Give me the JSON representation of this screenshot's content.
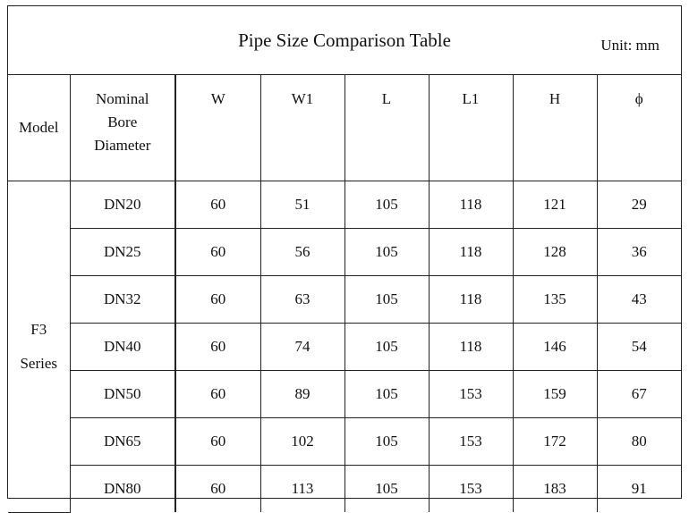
{
  "title": "Pipe Size Comparison Table",
  "unit": "Unit: mm",
  "headers": {
    "model": "Model",
    "bore_line1": "Nominal",
    "bore_line2": "Bore",
    "bore_line3": "Diameter",
    "w": "W",
    "w1": "W1",
    "l": "L",
    "l1": "L1",
    "h": "H",
    "phi": "ϕ"
  },
  "series": {
    "line1": "F3",
    "line2": "Series"
  },
  "rows": [
    {
      "dn": "DN20",
      "w": "60",
      "w1": "51",
      "l": "105",
      "l1": "118",
      "h": "121",
      "phi": "29"
    },
    {
      "dn": "DN25",
      "w": "60",
      "w1": "56",
      "l": "105",
      "l1": "118",
      "h": "128",
      "phi": "36"
    },
    {
      "dn": "DN32",
      "w": "60",
      "w1": "63",
      "l": "105",
      "l1": "118",
      "h": "135",
      "phi": "43"
    },
    {
      "dn": "DN40",
      "w": "60",
      "w1": "74",
      "l": "105",
      "l1": "118",
      "h": "146",
      "phi": "54"
    },
    {
      "dn": "DN50",
      "w": "60",
      "w1": "89",
      "l": "105",
      "l1": "153",
      "h": "159",
      "phi": "67"
    },
    {
      "dn": "DN65",
      "w": "60",
      "w1": "102",
      "l": "105",
      "l1": "153",
      "h": "172",
      "phi": "80"
    },
    {
      "dn": "DN80",
      "w": "60",
      "w1": "113",
      "l": "105",
      "l1": "153",
      "h": "183",
      "phi": "91"
    }
  ]
}
